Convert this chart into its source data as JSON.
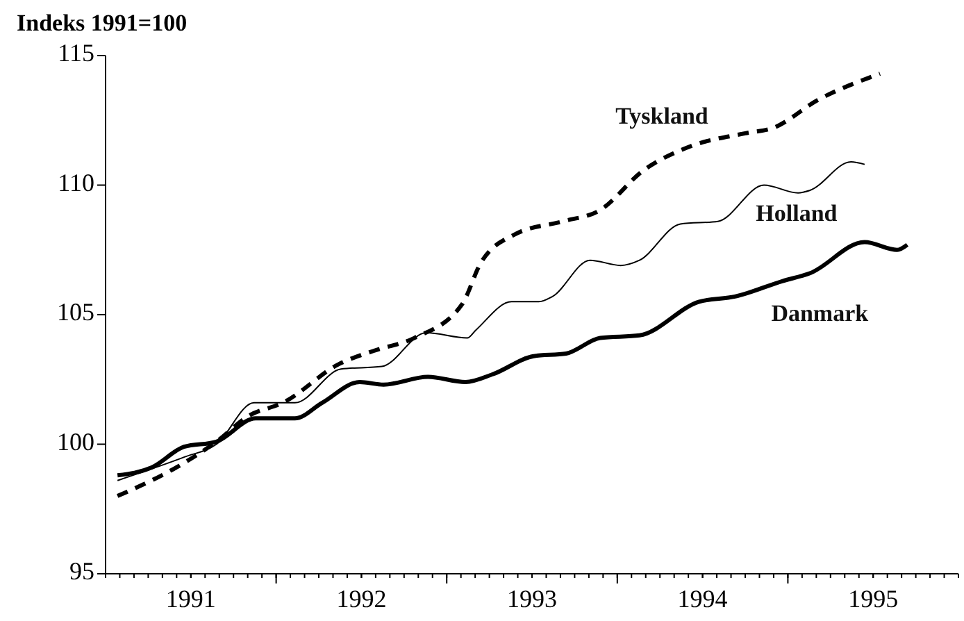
{
  "chart_data": {
    "type": "line",
    "ylabel": "Indeks 1991=100",
    "xlim": [
      1991,
      1996
    ],
    "ylim": [
      95,
      115
    ],
    "yticks": [
      95,
      100,
      105,
      110,
      115
    ],
    "xticks": [
      {
        "value": 1991.5,
        "label": "1991"
      },
      {
        "value": 1992,
        "label": null
      },
      {
        "value": 1992.5,
        "label": "1992"
      },
      {
        "value": 1993,
        "label": null
      },
      {
        "value": 1993.5,
        "label": "1993"
      },
      {
        "value": 1994,
        "label": null
      },
      {
        "value": 1994.5,
        "label": "1994"
      },
      {
        "value": 1995,
        "label": null
      },
      {
        "value": 1995.5,
        "label": "1995"
      }
    ],
    "grid": false,
    "marker": "none",
    "series": [
      {
        "name": "Danmark",
        "color": "#000000",
        "line_style": "solid",
        "x": [
          1991.07,
          1991.27,
          1991.46,
          1991.65,
          1991.88,
          1992.11,
          1992.27,
          1992.49,
          1992.63,
          1992.89,
          1993.11,
          1993.27,
          1993.51,
          1993.7,
          1993.9,
          1994.13,
          1994.48,
          1994.69,
          1994.97,
          1995.13,
          1995.45,
          1995.64,
          1995.7
        ],
        "values": [
          98.8,
          99.1,
          99.9,
          100.1,
          101.0,
          101.0,
          101.6,
          102.4,
          102.3,
          102.6,
          102.4,
          102.7,
          103.4,
          103.5,
          104.1,
          104.2,
          105.5,
          105.7,
          106.3,
          106.6,
          107.8,
          107.5,
          107.7
        ]
      },
      {
        "name": "Holland",
        "color": "#000000",
        "line_style": "solid",
        "x": [
          1991.07,
          1991.46,
          1991.65,
          1991.87,
          1992.11,
          1992.38,
          1992.62,
          1992.88,
          1993.12,
          1993.17,
          1993.38,
          1993.54,
          1993.62,
          1993.84,
          1994.02,
          1994.13,
          1994.37,
          1994.59,
          1994.86,
          1995.06,
          1995.13,
          1995.37,
          1995.45
        ],
        "values": [
          98.6,
          99.5,
          100.0,
          101.6,
          101.6,
          102.9,
          103.0,
          104.3,
          104.1,
          104.4,
          105.5,
          105.5,
          105.7,
          107.1,
          106.9,
          107.1,
          108.5,
          108.6,
          110.0,
          109.7,
          109.8,
          110.9,
          110.8
        ]
      },
      {
        "name": "Tyskland",
        "color": "#000000",
        "line_style": "dashed",
        "x": [
          1991.07,
          1991.44,
          1991.65,
          1991.84,
          1992.04,
          1992.37,
          1992.57,
          1992.81,
          1993.09,
          1993.2,
          1993.4,
          1993.68,
          1993.89,
          1994.16,
          1994.43,
          1994.75,
          1994.91,
          1995.18,
          1995.54
        ],
        "values": [
          98.0,
          99.2,
          100.1,
          101.1,
          101.6,
          103.1,
          103.6,
          104.1,
          105.4,
          107.0,
          108.1,
          108.6,
          109.0,
          110.6,
          111.5,
          112.0,
          112.2,
          113.3,
          114.3
        ]
      }
    ]
  }
}
